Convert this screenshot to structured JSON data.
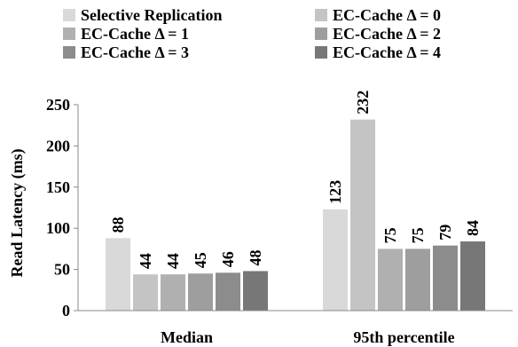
{
  "chart_data": {
    "type": "bar",
    "title": "",
    "xlabel": "",
    "ylabel": "Read Latency (ms)",
    "ylim": [
      0,
      250
    ],
    "yticks": [
      0,
      50,
      100,
      150,
      200,
      250
    ],
    "grid": false,
    "legend_position": "top",
    "categories": [
      "Median",
      "95th percentile"
    ],
    "series": [
      {
        "name": "Selective Replication",
        "color": "#d9d9d9",
        "values": [
          88,
          123
        ]
      },
      {
        "name": "EC-Cache Δ = 0",
        "color": "#c4c4c4",
        "values": [
          44,
          232
        ]
      },
      {
        "name": "EC-Cache Δ = 1",
        "color": "#b0b0b0",
        "values": [
          44,
          75
        ]
      },
      {
        "name": "EC-Cache Δ = 2",
        "color": "#9e9e9e",
        "values": [
          45,
          75
        ]
      },
      {
        "name": "EC-Cache Δ = 3",
        "color": "#8c8c8c",
        "values": [
          46,
          79
        ]
      },
      {
        "name": "EC-Cache Δ = 4",
        "color": "#777777",
        "values": [
          48,
          84
        ]
      }
    ]
  }
}
